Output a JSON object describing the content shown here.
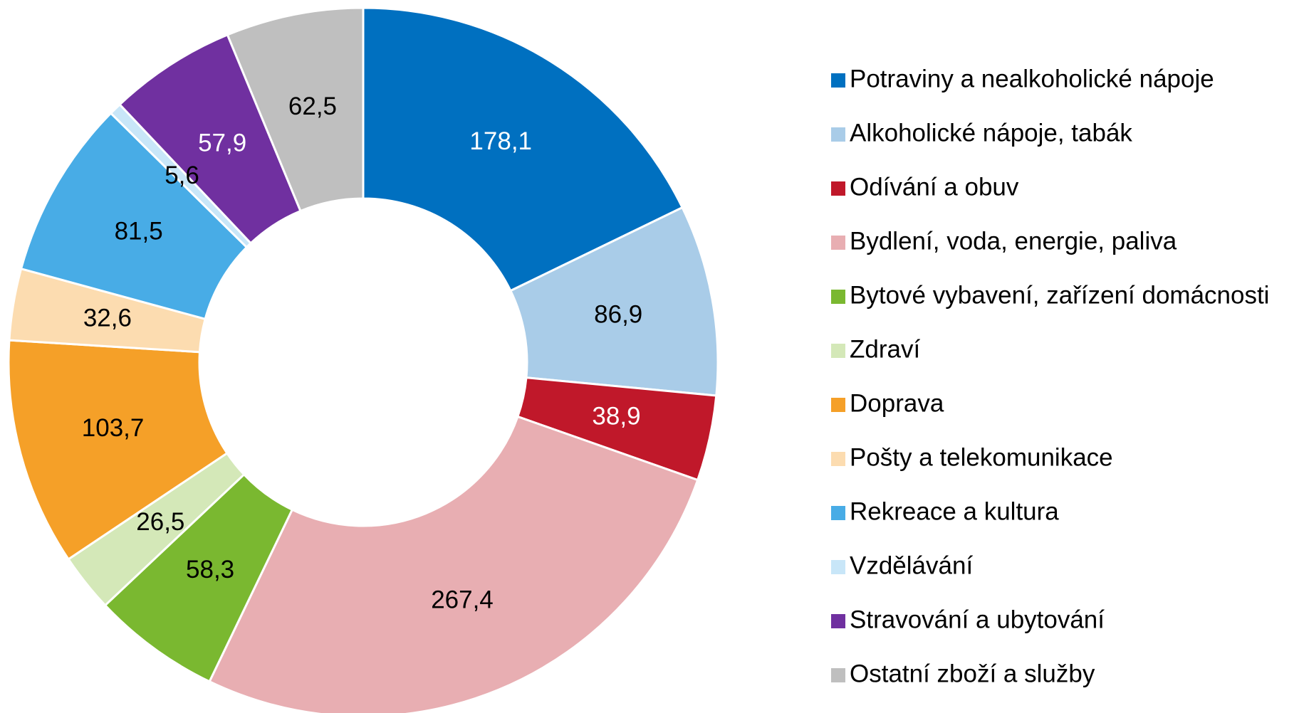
{
  "chart_data": {
    "type": "donut",
    "categories": [
      "Potraviny a nealkoholické nápoje",
      "Alkoholické nápoje, tabák",
      "Odívání a obuv",
      "Bydlení, voda, energie, paliva",
      "Bytové vybavení, zařízení domácnosti",
      "Zdraví",
      "Doprava",
      "Pošty a telekomunikace",
      "Rekreace a kultura",
      "Vzdělávání",
      "Stravování a ubytování",
      "Ostatní zboží a služby"
    ],
    "values": [
      178.1,
      86.9,
      38.9,
      267.4,
      58.3,
      26.5,
      103.7,
      32.6,
      81.5,
      5.6,
      57.9,
      62.5
    ],
    "value_labels": [
      "178,1",
      "86,9",
      "38,9",
      "267,4",
      "58,3",
      "26,5",
      "103,7",
      "32,6",
      "81,5",
      "5,6",
      "57,9",
      "62,5"
    ],
    "colors": [
      "#0070c0",
      "#a9cce8",
      "#c0182a",
      "#e8aeb2",
      "#7ab830",
      "#d4e8b8",
      "#f5a028",
      "#fcdcb0",
      "#48ace6",
      "#c8e6f8",
      "#7030a0",
      "#bfbfbf"
    ],
    "legend": "right"
  }
}
